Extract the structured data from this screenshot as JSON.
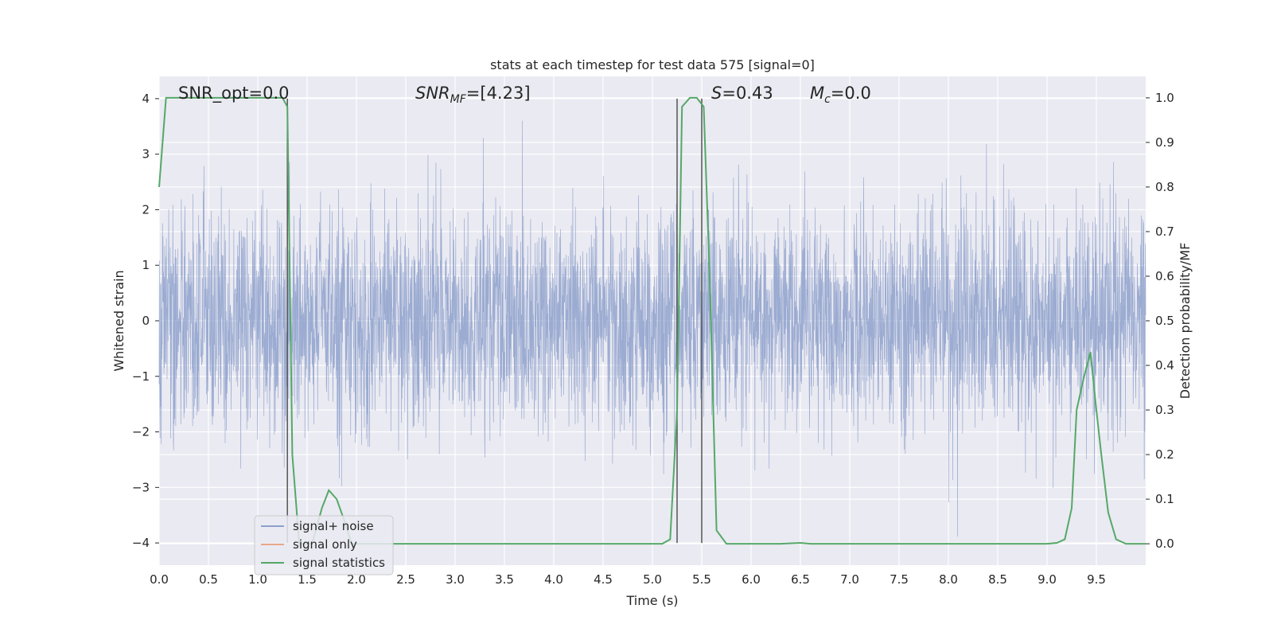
{
  "chart_data": {
    "type": "line",
    "title": "stats at each timestep for test data 575 [signal=0]",
    "xlabel": "Time (s)",
    "ylabel_left": "Whitened strain",
    "ylabel_right": "Detection probability/MF",
    "xlim": [
      0,
      10
    ],
    "ylim_left": [
      -4.4,
      4.4
    ],
    "ylim_right": [
      -0.048,
      1.048
    ],
    "x_ticks": [
      "0.0",
      "0.5",
      "1.0",
      "1.5",
      "2.0",
      "2.5",
      "3.0",
      "3.5",
      "4.0",
      "4.5",
      "5.0",
      "5.5",
      "6.0",
      "6.5",
      "7.0",
      "7.5",
      "8.0",
      "8.5",
      "9.0",
      "9.5"
    ],
    "y_ticks_left": [
      "4",
      "3",
      "2",
      "1",
      "0",
      "−1",
      "−2",
      "−3",
      "−4"
    ],
    "y_ticks_right": [
      "1.0",
      "0.9",
      "0.8",
      "0.7",
      "0.6",
      "0.5",
      "0.4",
      "0.3",
      "0.2",
      "0.1",
      "0.0"
    ],
    "grid": true,
    "legend_position": "lower-left",
    "annotations": {
      "snr_opt": "SNR_opt=0.0",
      "snr_mf_base": "SNR",
      "snr_mf_sub": "MF",
      "snr_mf_rest": "=[4.23]",
      "s_italic": "S",
      "s_rest": "=0.43",
      "mc_italic": "M",
      "mc_sub": "c",
      "mc_rest": "=0.0"
    },
    "vertical_lines_x": [
      1.3,
      5.25,
      5.5
    ],
    "series": [
      {
        "name": "signal+ noise",
        "color": "#8da0cb",
        "description_values": "whitened noise approx N(0,1), range about -4 to 4"
      },
      {
        "name": "signal only",
        "color": "#e8a88a",
        "values": []
      },
      {
        "name": "signal statistics",
        "color": "#55a868",
        "x": [
          0.0,
          0.07,
          0.15,
          0.3,
          0.6,
          0.9,
          1.1,
          1.25,
          1.3,
          1.35,
          1.42,
          1.55,
          1.65,
          1.72,
          1.8,
          1.88,
          1.95,
          2.05,
          2.5,
          3.0,
          4.0,
          5.0,
          5.1,
          5.18,
          5.25,
          5.3,
          5.38,
          5.45,
          5.52,
          5.58,
          5.65,
          5.75,
          6.0,
          6.3,
          6.5,
          6.6,
          7.0,
          8.0,
          9.0,
          9.1,
          9.18,
          9.25,
          9.3,
          9.37,
          9.44,
          9.5,
          9.55,
          9.62,
          9.7,
          9.8,
          10.0
        ],
        "y": [
          0.8,
          1.0,
          1.0,
          1.0,
          1.0,
          1.0,
          1.0,
          1.0,
          0.98,
          0.2,
          0.0,
          0.0,
          0.08,
          0.12,
          0.1,
          0.05,
          0.0,
          0.0,
          0.0,
          0.0,
          0.0,
          0.0,
          0.0,
          0.01,
          0.3,
          0.98,
          1.0,
          1.0,
          0.98,
          0.6,
          0.03,
          0.0,
          0.0,
          0.0,
          0.002,
          0.0,
          0.0,
          0.0,
          0.0,
          0.002,
          0.01,
          0.08,
          0.3,
          0.37,
          0.43,
          0.3,
          0.2,
          0.07,
          0.01,
          0.0,
          0.0
        ]
      }
    ]
  }
}
